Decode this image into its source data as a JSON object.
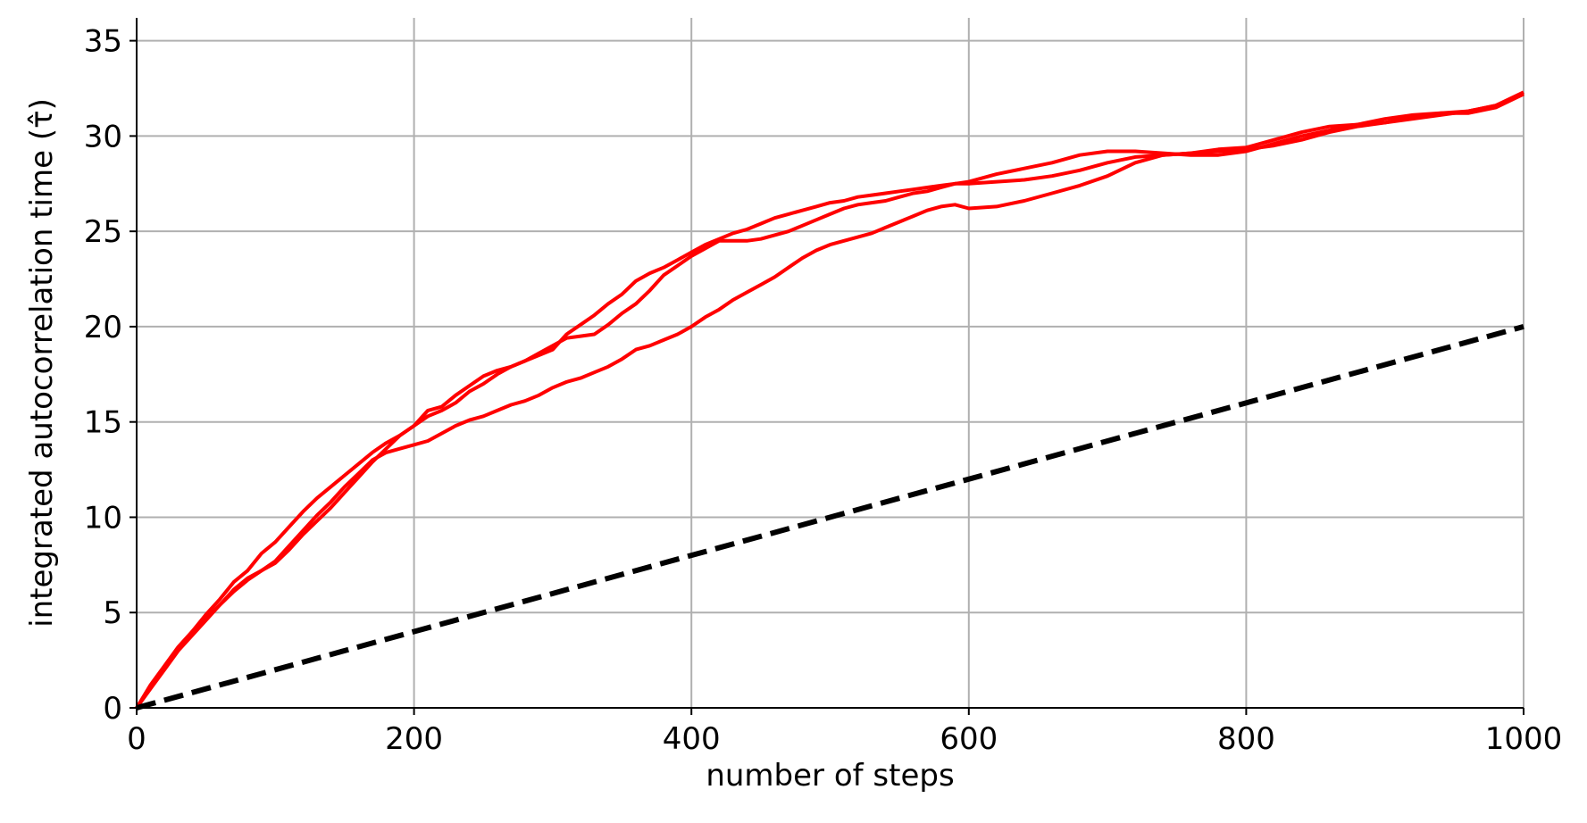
{
  "chart_data": {
    "type": "line",
    "title": "",
    "xlabel": "number of steps",
    "ylabel": "integrated autocorrelation time (τ̂)",
    "xlim": [
      0,
      1000
    ],
    "ylim": [
      0,
      36.2
    ],
    "xticks": [
      0,
      200,
      400,
      600,
      800,
      1000
    ],
    "xtick_labels": [
      "0",
      "200",
      "400",
      "600",
      "800",
      "1000"
    ],
    "yticks": [
      0,
      5,
      10,
      15,
      20,
      25,
      30,
      35
    ],
    "ytick_labels": [
      "0",
      "5",
      "10",
      "15",
      "20",
      "25",
      "30",
      "35"
    ],
    "grid": true,
    "legend": "none",
    "colors": {
      "series": "#ff0000",
      "reference": "#000000",
      "grid": "#b0b0b0"
    },
    "series": [
      {
        "color": "#ff0000",
        "style": "solid",
        "x": [
          0,
          10,
          20,
          30,
          40,
          50,
          60,
          70,
          80,
          90,
          100,
          110,
          120,
          130,
          140,
          150,
          160,
          170,
          180,
          190,
          200,
          210,
          220,
          230,
          240,
          250,
          260,
          270,
          280,
          290,
          300,
          310,
          320,
          330,
          340,
          350,
          360,
          370,
          380,
          390,
          400,
          410,
          420,
          430,
          440,
          450,
          460,
          470,
          480,
          490,
          500,
          510,
          520,
          530,
          540,
          550,
          560,
          570,
          580,
          590,
          600,
          620,
          640,
          660,
          680,
          700,
          720,
          740,
          760,
          780,
          800,
          820,
          840,
          860,
          880,
          900,
          920,
          940,
          960,
          980,
          1000
        ],
        "y": [
          0,
          1.1,
          2.1,
          3.1,
          4.0,
          4.9,
          5.7,
          6.6,
          7.2,
          8.1,
          8.7,
          9.5,
          10.3,
          11.0,
          11.6,
          12.2,
          12.8,
          13.4,
          13.9,
          14.3,
          14.8,
          15.3,
          15.6,
          16.0,
          16.6,
          17.0,
          17.5,
          17.9,
          18.2,
          18.5,
          18.8,
          19.6,
          20.1,
          20.6,
          21.2,
          21.7,
          22.4,
          22.8,
          23.1,
          23.5,
          23.9,
          24.3,
          24.6,
          24.9,
          25.1,
          25.4,
          25.7,
          25.9,
          26.1,
          26.3,
          26.5,
          26.6,
          26.8,
          26.9,
          27.0,
          27.1,
          27.2,
          27.3,
          27.4,
          27.5,
          27.5,
          27.6,
          27.7,
          27.9,
          28.2,
          28.6,
          28.9,
          29.0,
          29.1,
          29.3,
          29.4,
          29.8,
          30.2,
          30.5,
          30.6,
          30.7,
          31.0,
          31.2,
          31.3,
          31.6,
          32.3
        ]
      },
      {
        "color": "#ff0000",
        "style": "solid",
        "x": [
          0,
          10,
          20,
          30,
          40,
          50,
          60,
          70,
          80,
          90,
          100,
          110,
          120,
          130,
          140,
          150,
          160,
          170,
          180,
          190,
          200,
          210,
          220,
          230,
          240,
          250,
          260,
          270,
          280,
          290,
          300,
          310,
          320,
          330,
          340,
          350,
          360,
          370,
          380,
          390,
          400,
          410,
          420,
          430,
          440,
          450,
          460,
          470,
          480,
          490,
          500,
          510,
          520,
          530,
          540,
          550,
          560,
          570,
          580,
          590,
          600,
          620,
          640,
          660,
          680,
          700,
          720,
          740,
          760,
          780,
          800,
          820,
          840,
          860,
          880,
          900,
          920,
          940,
          960,
          980,
          1000
        ],
        "y": [
          0,
          1.2,
          2.2,
          3.2,
          4.0,
          4.7,
          5.4,
          6.1,
          6.7,
          7.2,
          7.6,
          8.3,
          9.1,
          9.8,
          10.5,
          11.3,
          12.1,
          12.9,
          13.6,
          14.3,
          14.8,
          15.6,
          15.8,
          16.4,
          16.9,
          17.4,
          17.7,
          17.9,
          18.2,
          18.6,
          19.0,
          19.4,
          19.5,
          19.6,
          20.1,
          20.7,
          21.2,
          21.9,
          22.7,
          23.2,
          23.7,
          24.1,
          24.5,
          24.5,
          24.5,
          24.6,
          24.8,
          25.0,
          25.3,
          25.6,
          25.9,
          26.2,
          26.4,
          26.5,
          26.6,
          26.8,
          27.0,
          27.1,
          27.3,
          27.5,
          27.6,
          28.0,
          28.3,
          28.6,
          29.0,
          29.2,
          29.2,
          29.1,
          29.0,
          29.0,
          29.2,
          29.6,
          30.0,
          30.3,
          30.6,
          30.9,
          31.1,
          31.2,
          31.2,
          31.5,
          32.2
        ]
      },
      {
        "color": "#ff0000",
        "style": "solid",
        "x": [
          0,
          10,
          20,
          30,
          40,
          50,
          60,
          70,
          80,
          90,
          100,
          110,
          120,
          130,
          140,
          150,
          160,
          170,
          180,
          190,
          200,
          210,
          220,
          230,
          240,
          250,
          260,
          270,
          280,
          290,
          300,
          310,
          320,
          330,
          340,
          350,
          360,
          370,
          380,
          390,
          400,
          410,
          420,
          430,
          440,
          450,
          460,
          470,
          480,
          490,
          500,
          510,
          520,
          530,
          540,
          550,
          560,
          570,
          580,
          590,
          600,
          620,
          640,
          660,
          680,
          700,
          720,
          740,
          760,
          780,
          800,
          820,
          840,
          860,
          880,
          900,
          920,
          940,
          960,
          980,
          1000
        ],
        "y": [
          0,
          1.0,
          2.0,
          3.0,
          3.8,
          4.6,
          5.4,
          6.2,
          6.8,
          7.2,
          7.7,
          8.5,
          9.3,
          10.1,
          10.8,
          11.6,
          12.3,
          13.0,
          13.4,
          13.6,
          13.8,
          14.0,
          14.4,
          14.8,
          15.1,
          15.3,
          15.6,
          15.9,
          16.1,
          16.4,
          16.8,
          17.1,
          17.3,
          17.6,
          17.9,
          18.3,
          18.8,
          19.0,
          19.3,
          19.6,
          20.0,
          20.5,
          20.9,
          21.4,
          21.8,
          22.2,
          22.6,
          23.1,
          23.6,
          24.0,
          24.3,
          24.5,
          24.7,
          24.9,
          25.2,
          25.5,
          25.8,
          26.1,
          26.3,
          26.4,
          26.2,
          26.3,
          26.6,
          27.0,
          27.4,
          27.9,
          28.6,
          29.0,
          29.1,
          29.2,
          29.3,
          29.5,
          29.8,
          30.2,
          30.5,
          30.7,
          30.9,
          31.1,
          31.3,
          31.6,
          32.2
        ]
      },
      {
        "color": "#000000",
        "style": "dashed",
        "x": [
          0,
          1000
        ],
        "y": [
          0,
          20
        ]
      }
    ]
  }
}
